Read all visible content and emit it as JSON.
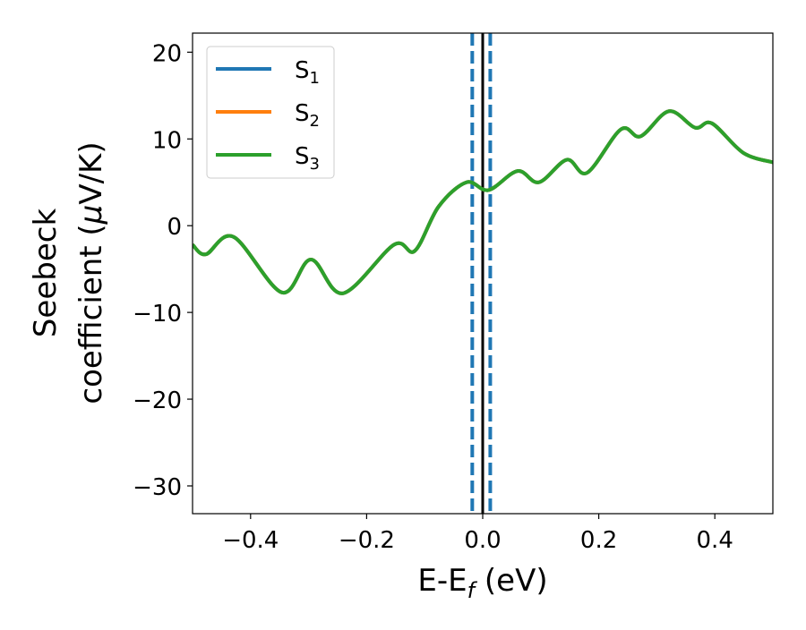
{
  "chart_data": {
    "type": "line",
    "xlabel": "E-E",
    "xlabel_sub": "f",
    "xlabel_unit": " (eV)",
    "ylabel_line1": "Seebeck",
    "ylabel_line2_pre": "coefficient  (",
    "ylabel_mu": "μ",
    "ylabel_line2_post": "V/K)",
    "xlim": [
      -0.5,
      0.5
    ],
    "ylim": [
      -33.2,
      22.2
    ],
    "xticks": [
      -0.4,
      -0.2,
      0.0,
      0.2,
      0.4
    ],
    "xtick_labels": [
      "−0.4",
      "−0.2",
      "0.0",
      "0.2",
      "0.4"
    ],
    "yticks": [
      20,
      10,
      0,
      -10,
      -20,
      -30
    ],
    "ytick_labels": [
      "20",
      "10",
      "0",
      "−10",
      "−20",
      "−30"
    ],
    "grid": false,
    "legend_position": "top-left",
    "vlines": [
      {
        "x": 0.0,
        "color": "#000000",
        "style": "solid"
      },
      {
        "x": -0.018,
        "color": "#1f77b4",
        "style": "dashed"
      },
      {
        "x": 0.013,
        "color": "#1f77b4",
        "style": "dashed"
      }
    ],
    "x": [
      -0.5,
      -0.477,
      -0.429,
      -0.346,
      -0.296,
      -0.241,
      -0.153,
      -0.117,
      -0.076,
      -0.028,
      0.01,
      0.06,
      0.097,
      0.145,
      0.18,
      0.238,
      0.272,
      0.321,
      0.366,
      0.395,
      0.449,
      0.5
    ],
    "series": [
      {
        "name": "S",
        "sub": "1",
        "color": "#1f77b4",
        "values": [
          -2.2,
          -3.3,
          -1.3,
          -7.7,
          -3.9,
          -7.8,
          -2.2,
          -2.9,
          2.2,
          5.0,
          4.1,
          6.3,
          5.0,
          7.6,
          6.1,
          11.1,
          10.3,
          13.2,
          11.3,
          11.8,
          8.4,
          7.3
        ]
      },
      {
        "name": "S",
        "sub": "2",
        "color": "#ff7f0e",
        "values": [
          -2.2,
          -3.3,
          -1.3,
          -7.7,
          -3.9,
          -7.8,
          -2.2,
          -2.9,
          2.2,
          5.0,
          4.1,
          6.3,
          5.0,
          7.6,
          6.1,
          11.1,
          10.3,
          13.2,
          11.3,
          11.8,
          8.4,
          7.3
        ]
      },
      {
        "name": "S",
        "sub": "3",
        "color": "#2ca02c",
        "values": [
          -2.2,
          -3.3,
          -1.3,
          -7.7,
          -3.9,
          -7.8,
          -2.2,
          -2.9,
          2.2,
          5.0,
          4.1,
          6.3,
          5.0,
          7.6,
          6.1,
          11.1,
          10.3,
          13.2,
          11.3,
          11.8,
          8.4,
          7.3
        ]
      }
    ]
  }
}
